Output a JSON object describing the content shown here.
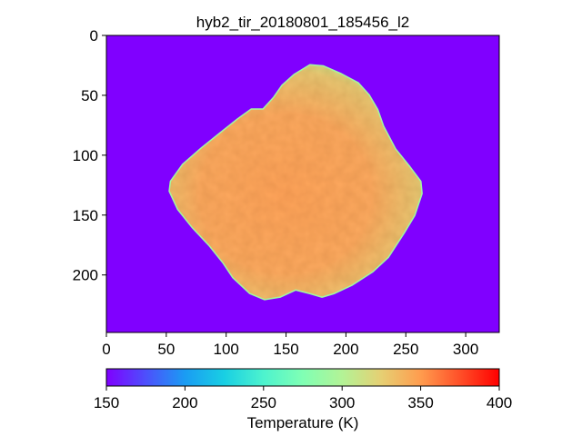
{
  "chart_data": {
    "type": "heatmap",
    "title": "hyb2_tir_20180801_185456_l2",
    "image_size": {
      "cols": 328,
      "rows": 248
    },
    "x_axis": {
      "ticks": [
        0,
        50,
        100,
        150,
        200,
        250,
        300
      ],
      "range": [
        0,
        328
      ]
    },
    "y_axis": {
      "ticks": [
        0,
        50,
        100,
        150,
        200
      ],
      "range": [
        0,
        248
      ],
      "inverted": true
    },
    "colorbar": {
      "label": "Temperature (K)",
      "ticks": [
        150,
        200,
        250,
        300,
        350,
        400
      ],
      "range": [
        150,
        400
      ],
      "colormap": "rainbow",
      "orientation": "horizontal",
      "placement": "bottom"
    },
    "background_temperature_K": 150,
    "asteroid": {
      "typical_temperature_K": 340,
      "limb_temperature_K": 290,
      "outline": [
        [
          54,
          122
        ],
        [
          64,
          108
        ],
        [
          80,
          94
        ],
        [
          95,
          82
        ],
        [
          110,
          70
        ],
        [
          121,
          62
        ],
        [
          131,
          62
        ],
        [
          140,
          52
        ],
        [
          147,
          42
        ],
        [
          157,
          33
        ],
        [
          170,
          25
        ],
        [
          181,
          26
        ],
        [
          195,
          32
        ],
        [
          210,
          40
        ],
        [
          219,
          50
        ],
        [
          226,
          62
        ],
        [
          231,
          76
        ],
        [
          241,
          95
        ],
        [
          253,
          110
        ],
        [
          262,
          122
        ],
        [
          263,
          132
        ],
        [
          257,
          150
        ],
        [
          248,
          165
        ],
        [
          235,
          185
        ],
        [
          222,
          197
        ],
        [
          205,
          208
        ],
        [
          190,
          215
        ],
        [
          180,
          218
        ],
        [
          170,
          215
        ],
        [
          158,
          212
        ],
        [
          145,
          218
        ],
        [
          132,
          220
        ],
        [
          120,
          215
        ],
        [
          106,
          202
        ],
        [
          98,
          190
        ],
        [
          86,
          175
        ],
        [
          72,
          160
        ],
        [
          60,
          145
        ],
        [
          53,
          130
        ]
      ]
    }
  }
}
